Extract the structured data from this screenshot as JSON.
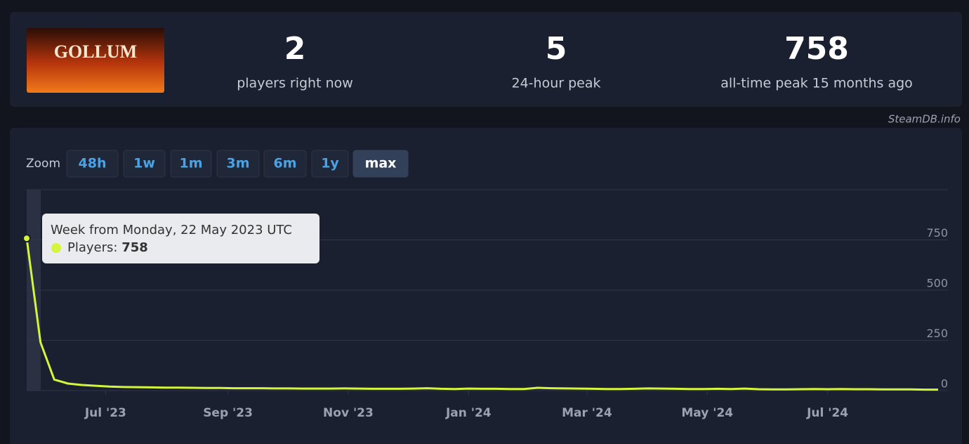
{
  "header": {
    "logo_text": "GOLLUM",
    "stats": [
      {
        "value": 2,
        "label": "players right now"
      },
      {
        "value": 5,
        "label": "24-hour peak"
      },
      {
        "value": 758,
        "label": "all-time peak 15 months ago"
      }
    ],
    "watermark": "SteamDB.info"
  },
  "zoom": {
    "label": "Zoom",
    "buttons": [
      "48h",
      "1w",
      "1m",
      "3m",
      "6m",
      "1y",
      "max"
    ],
    "active": 6
  },
  "tooltip": {
    "title": "Week from Monday, 22 May 2023 UTC",
    "label": "Players:",
    "value": 758
  },
  "chart_data": {
    "type": "line",
    "color": "#d4f53c",
    "x": [
      "2023-05-22",
      "2023-05-29",
      "2023-06-05",
      "2023-06-12",
      "2023-06-19",
      "2023-06-26",
      "2023-07-03",
      "2023-07-10",
      "2023-07-17",
      "2023-07-24",
      "2023-07-31",
      "2023-08-07",
      "2023-08-14",
      "2023-08-21",
      "2023-08-28",
      "2023-09-04",
      "2023-09-11",
      "2023-09-18",
      "2023-09-25",
      "2023-10-02",
      "2023-10-09",
      "2023-10-16",
      "2023-10-23",
      "2023-10-30",
      "2023-11-06",
      "2023-11-13",
      "2023-11-20",
      "2023-11-27",
      "2023-12-04",
      "2023-12-11",
      "2023-12-18",
      "2023-12-25",
      "2024-01-01",
      "2024-01-08",
      "2024-01-15",
      "2024-01-22",
      "2024-01-29",
      "2024-02-05",
      "2024-02-12",
      "2024-02-19",
      "2024-02-26",
      "2024-03-04",
      "2024-03-11",
      "2024-03-18",
      "2024-03-25",
      "2024-04-01",
      "2024-04-08",
      "2024-04-15",
      "2024-04-22",
      "2024-04-29",
      "2024-05-06",
      "2024-05-13",
      "2024-05-20",
      "2024-05-27",
      "2024-06-03",
      "2024-06-10",
      "2024-06-17",
      "2024-06-24",
      "2024-07-01",
      "2024-07-08",
      "2024-07-15",
      "2024-07-22",
      "2024-07-29",
      "2024-08-05",
      "2024-08-12",
      "2024-08-19",
      "2024-08-26"
    ],
    "values": [
      758,
      240,
      55,
      35,
      28,
      24,
      20,
      18,
      17,
      16,
      15,
      15,
      14,
      13,
      13,
      12,
      12,
      12,
      11,
      11,
      10,
      10,
      10,
      11,
      10,
      9,
      9,
      9,
      10,
      12,
      9,
      8,
      10,
      9,
      9,
      8,
      8,
      14,
      12,
      11,
      10,
      9,
      8,
      8,
      9,
      11,
      10,
      9,
      8,
      8,
      9,
      8,
      10,
      7,
      6,
      6,
      7,
      8,
      7,
      8,
      7,
      7,
      6,
      6,
      6,
      5,
      5
    ],
    "xlim": [
      "2023-05-22",
      "2024-08-31"
    ],
    "xticks": [
      {
        "value": "2023-07-01",
        "label": "Jul '23"
      },
      {
        "value": "2023-09-01",
        "label": "Sep '23"
      },
      {
        "value": "2023-11-01",
        "label": "Nov '23"
      },
      {
        "value": "2024-01-01",
        "label": "Jan '24"
      },
      {
        "value": "2024-03-01",
        "label": "Mar '24"
      },
      {
        "value": "2024-05-01",
        "label": "May '24"
      },
      {
        "value": "2024-07-01",
        "label": "Jul '24"
      }
    ],
    "ylim": [
      0,
      1000
    ],
    "yticks": [
      0,
      250,
      500,
      750
    ],
    "grid": true
  }
}
